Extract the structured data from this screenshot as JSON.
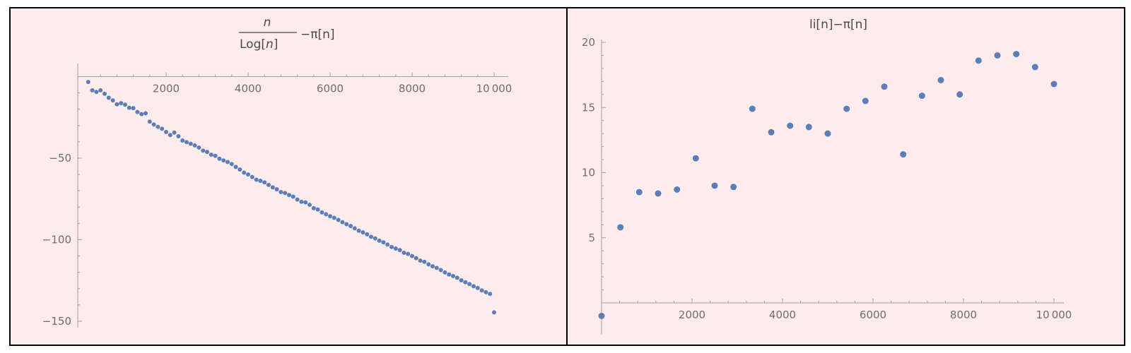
{
  "chart_data": [
    {
      "type": "scatter",
      "title_parts": {
        "numerator": "n",
        "denominator_prefix": "Log[",
        "denominator_var": "n",
        "denominator_suffix": "]",
        "rest": "−π[n]"
      },
      "xlim": [
        0,
        10000
      ],
      "ylim": [
        -152,
        4
      ],
      "x_ticks": [
        2000,
        4000,
        6000,
        8000,
        10000
      ],
      "x_tick_labels": [
        "2000",
        "4000",
        "6000",
        "8000",
        "10 000"
      ],
      "y_ticks": [
        -50,
        -100,
        -150
      ],
      "y_tick_labels": [
        "−50",
        "−100",
        "−150"
      ],
      "marker_color": "#5b7fb5",
      "series": [
        {
          "x": [
            100,
            200,
            300,
            400,
            500,
            600,
            700,
            800,
            900,
            1000,
            1100,
            1200,
            1300,
            1400,
            1500,
            1600,
            1700,
            1800,
            1900,
            2000,
            2100,
            2200,
            2300,
            2400,
            2500,
            2600,
            2700,
            2800,
            2900,
            3000,
            3100,
            3200,
            3300,
            3400,
            3500,
            3600,
            3700,
            3800,
            3900,
            4000,
            4100,
            4200,
            4300,
            4400,
            4500,
            4600,
            4700,
            4800,
            4900,
            5000,
            5100,
            5200,
            5300,
            5400,
            5500,
            5600,
            5700,
            5800,
            5900,
            6000,
            6100,
            6200,
            6300,
            6400,
            6500,
            6600,
            6700,
            6800,
            6900,
            7000,
            7100,
            7200,
            7300,
            7400,
            7500,
            7600,
            7700,
            7800,
            7900,
            8000,
            8100,
            8200,
            8300,
            8400,
            8500,
            8600,
            8700,
            8800,
            8900,
            9000,
            9100,
            9200,
            9300,
            9400,
            9500,
            9600,
            9700,
            9800,
            9900,
            10000
          ],
          "y": [
            -3.3,
            -8.4,
            -9.4,
            -8.4,
            -10.5,
            -13.0,
            -14.6,
            -17.0,
            -16.3,
            -17.2,
            -19.1,
            -19.3,
            -21.7,
            -23.0,
            -22.5,
            -27.6,
            -29.4,
            -30.8,
            -32.0,
            -34.0,
            -35.8,
            -34.3,
            -36.6,
            -39.2,
            -40.2,
            -41.2,
            -42.2,
            -43.5,
            -45.4,
            -46.2,
            -47.9,
            -48.6,
            -50.3,
            -51.4,
            -52.4,
            -53.6,
            -55.4,
            -57.0,
            -58.9,
            -60.0,
            -61.6,
            -63.2,
            -63.9,
            -64.9,
            -66.4,
            -67.9,
            -69.1,
            -70.8,
            -71.4,
            -72.6,
            -73.6,
            -75.4,
            -76.8,
            -77.1,
            -78.6,
            -80.7,
            -81.5,
            -83.3,
            -84.4,
            -85.6,
            -86.6,
            -87.9,
            -89.3,
            -90.5,
            -91.6,
            -93.0,
            -94.5,
            -95.5,
            -96.7,
            -98.2,
            -99.2,
            -100.6,
            -101.6,
            -103.0,
            -104.5,
            -105.4,
            -106.4,
            -108.0,
            -108.7,
            -110.0,
            -111.3,
            -112.8,
            -113.6,
            -115.1,
            -116.3,
            -117.3,
            -118.6,
            -120.1,
            -121.3,
            -122.3,
            -123.4,
            -124.9,
            -126.1,
            -127.2,
            -128.5,
            -129.6,
            -131.1,
            -132.2,
            -133.2,
            -144.6
          ]
        }
      ]
    },
    {
      "type": "scatter",
      "title": "li[n]−π[n]",
      "xlim": [
        0,
        10000
      ],
      "ylim": [
        -1,
        20
      ],
      "x_ticks": [
        2000,
        4000,
        6000,
        8000,
        10000
      ],
      "x_tick_labels": [
        "2000",
        "4000",
        "6000",
        "8000",
        "10 000"
      ],
      "y_ticks": [
        5,
        10,
        15,
        20
      ],
      "y_tick_labels": [
        "5",
        "10",
        "15",
        "20"
      ],
      "marker_color": "#5b7fb5",
      "series": [
        {
          "x": [
            0,
            417,
            833,
            1250,
            1667,
            2083,
            2500,
            2917,
            3333,
            3750,
            4167,
            4583,
            5000,
            5417,
            5833,
            6250,
            6667,
            7083,
            7500,
            7917,
            8333,
            8750,
            9167,
            9583,
            10000
          ],
          "y": [
            -1.0,
            5.8,
            8.5,
            8.4,
            8.7,
            11.1,
            9.0,
            8.9,
            14.9,
            13.1,
            13.6,
            13.5,
            13.0,
            14.9,
            15.5,
            16.6,
            11.4,
            15.9,
            17.1,
            16.0,
            18.6,
            19.0,
            19.1,
            18.1,
            16.8
          ]
        }
      ]
    }
  ]
}
